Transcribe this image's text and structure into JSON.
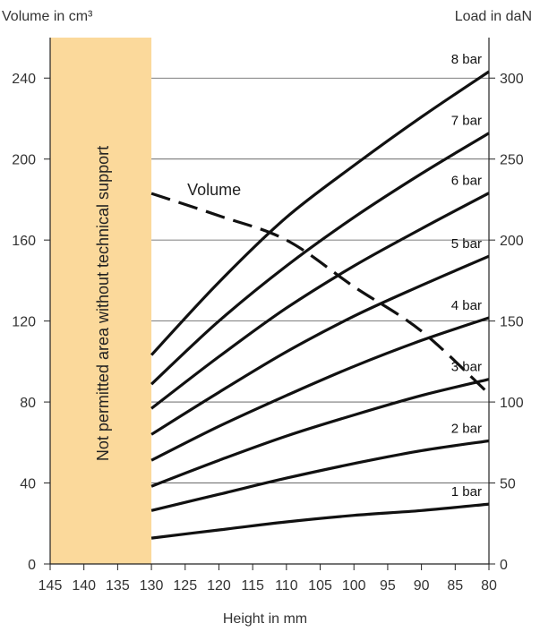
{
  "chart_data": {
    "type": "line",
    "title": "",
    "y_left_label": "Volume in cm³",
    "y_right_label": "Load in daN",
    "xlabel": "Height in mm",
    "x_reversed": true,
    "xlim": [
      145,
      80
    ],
    "y_left_lim": [
      0,
      260
    ],
    "y_right_lim": [
      0,
      325
    ],
    "x_ticks": [
      145,
      140,
      135,
      130,
      125,
      120,
      115,
      110,
      105,
      100,
      95,
      90,
      85,
      80
    ],
    "y_left_ticks": [
      0,
      40,
      80,
      120,
      160,
      200,
      240
    ],
    "y_right_ticks": [
      0,
      50,
      100,
      150,
      200,
      250,
      300
    ],
    "grid": "horizontal",
    "shaded_region": {
      "x_range": [
        145,
        130
      ],
      "color": "#fbd99b",
      "text": "Not permitted area without technical support"
    },
    "series": [
      {
        "name": "Volume",
        "axis": "left",
        "style": "dashed",
        "x": [
          130,
          120,
          110,
          100,
          90,
          80
        ],
        "values": [
          183,
          172,
          160,
          137,
          115,
          84
        ]
      },
      {
        "name": "1 bar",
        "axis": "right",
        "style": "solid",
        "x": [
          130,
          120,
          110,
          100,
          90,
          80
        ],
        "values": [
          16,
          21,
          26,
          30,
          33,
          37
        ]
      },
      {
        "name": "2 bar",
        "axis": "right",
        "style": "solid",
        "x": [
          130,
          120,
          110,
          100,
          90,
          80
        ],
        "values": [
          33,
          43,
          53,
          62,
          70,
          76
        ]
      },
      {
        "name": "3 bar",
        "axis": "right",
        "style": "solid",
        "x": [
          130,
          120,
          110,
          100,
          90,
          80
        ],
        "values": [
          48,
          64,
          79,
          92,
          104,
          114
        ]
      },
      {
        "name": "4 bar",
        "axis": "right",
        "style": "solid",
        "x": [
          130,
          120,
          110,
          100,
          90,
          80
        ],
        "values": [
          64,
          85,
          104,
          122,
          138,
          152
        ]
      },
      {
        "name": "5 bar",
        "axis": "right",
        "style": "solid",
        "x": [
          130,
          120,
          110,
          100,
          90,
          80
        ],
        "values": [
          80,
          106,
          131,
          153,
          172,
          190
        ]
      },
      {
        "name": "6 bar",
        "axis": "right",
        "style": "solid",
        "x": [
          130,
          120,
          110,
          100,
          90,
          80
        ],
        "values": [
          96,
          128,
          158,
          184,
          207,
          229
        ]
      },
      {
        "name": "7 bar",
        "axis": "right",
        "style": "solid",
        "x": [
          130,
          120,
          110,
          100,
          90,
          80
        ],
        "values": [
          111,
          150,
          184,
          214,
          241,
          266
        ]
      },
      {
        "name": "8 bar",
        "axis": "right",
        "style": "solid",
        "x": [
          130,
          120,
          110,
          100,
          90,
          80
        ],
        "values": [
          129,
          174,
          214,
          246,
          276,
          304
        ]
      }
    ]
  }
}
